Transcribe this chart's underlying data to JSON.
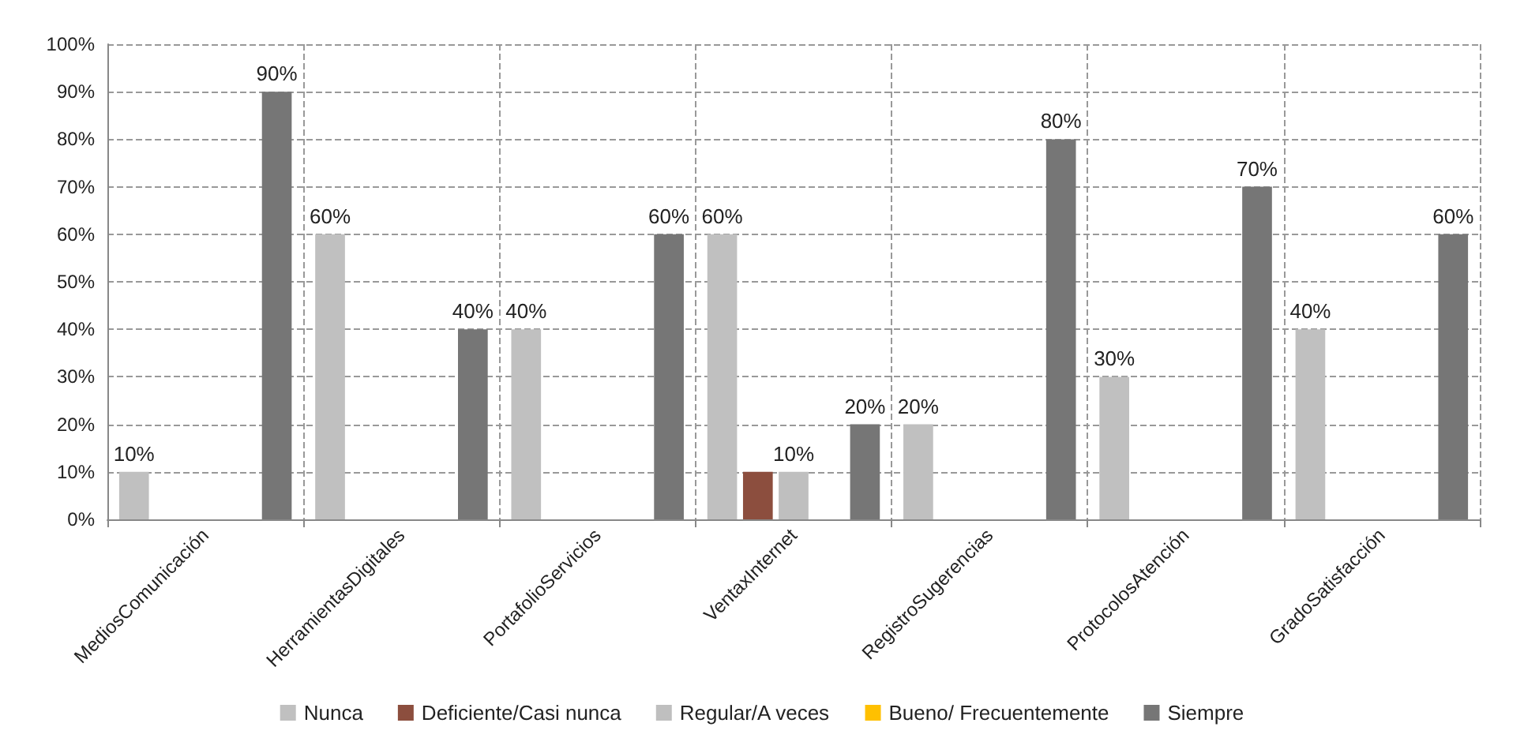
{
  "chart_data": {
    "type": "bar",
    "categories": [
      "MediosComunicación",
      "HerramientasDigitales",
      "PortafolioServicios",
      "VentaxInternet",
      "RegistroSugerencias",
      "ProtocolosAtención",
      "GradoSatisfacción"
    ],
    "series": [
      {
        "name": "Nunca",
        "color": "#c0c0c0",
        "values": [
          10,
          60,
          40,
          60,
          20,
          30,
          40
        ],
        "value_labels": [
          "10%",
          "60%",
          "40%",
          "60%",
          "20%",
          "30%",
          "40%"
        ]
      },
      {
        "name": "Deficiente/Casi nunca",
        "color": "#8c4e3e",
        "values": [
          0,
          0,
          0,
          10,
          0,
          0,
          0
        ],
        "value_labels": [
          null,
          null,
          null,
          null,
          null,
          null,
          null
        ]
      },
      {
        "name": "Regular/A veces",
        "color": "#bfbfbf",
        "values": [
          0,
          0,
          0,
          10,
          0,
          0,
          0
        ],
        "value_labels": [
          null,
          null,
          null,
          "10%",
          null,
          null,
          null
        ]
      },
      {
        "name": "Bueno/ Frecuentemente",
        "color": "#ffc000",
        "values": [
          0,
          0,
          0,
          0,
          0,
          0,
          0
        ],
        "value_labels": [
          null,
          null,
          null,
          null,
          null,
          null,
          null
        ]
      },
      {
        "name": "Siempre",
        "color": "#767676",
        "values": [
          90,
          40,
          60,
          20,
          80,
          70,
          60
        ],
        "value_labels": [
          "90%",
          "40%",
          "60%",
          "20%",
          "80%",
          "70%",
          "60%"
        ]
      }
    ],
    "ylim": [
      0,
      100
    ],
    "yticks": [
      {
        "value": 0,
        "label": "0%"
      },
      {
        "value": 10,
        "label": "10%"
      },
      {
        "value": 20,
        "label": "20%"
      },
      {
        "value": 30,
        "label": "30%"
      },
      {
        "value": 40,
        "label": "40%"
      },
      {
        "value": 50,
        "label": "50%"
      },
      {
        "value": 60,
        "label": "60%"
      },
      {
        "value": 70,
        "label": "70%"
      },
      {
        "value": 80,
        "label": "80%"
      },
      {
        "value": 90,
        "label": "90%"
      },
      {
        "value": 100,
        "label": "100%"
      }
    ],
    "grid": true,
    "legend": "bottom"
  }
}
